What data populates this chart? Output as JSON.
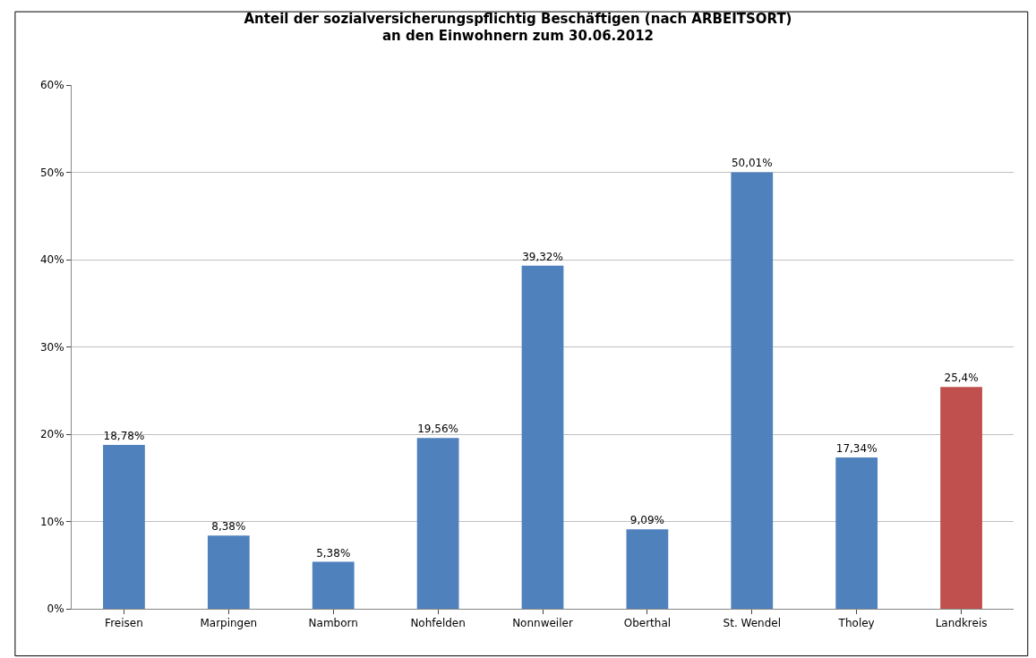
{
  "chart_data": {
    "type": "bar",
    "title": "Anteil der sozialversicherungspflichtig Beschäftigen (nach ARBEITSORT)\nan den Einwohnern zum 30.06.2012",
    "categories": [
      "Freisen",
      "Marpingen",
      "Namborn",
      "Nohfelden",
      "Nonnweiler",
      "Oberthal",
      "St. Wendel",
      "Tholey",
      "Landkreis"
    ],
    "values": [
      18.78,
      8.38,
      5.38,
      19.56,
      39.32,
      9.09,
      50.01,
      17.34,
      25.4
    ],
    "colors": [
      "#4f81bd",
      "#4f81bd",
      "#4f81bd",
      "#4f81bd",
      "#4f81bd",
      "#4f81bd",
      "#4f81bd",
      "#4f81bd",
      "#c0504d"
    ],
    "value_labels": [
      "18,78%",
      "8,38%",
      "5,38%",
      "19,56%",
      "39,32%",
      "9,09%",
      "50,01%",
      "17,34%",
      "25,4%"
    ],
    "ylim": [
      0,
      60
    ],
    "yticks": [
      {
        "value": 0,
        "label": "0%"
      },
      {
        "value": 10,
        "label": "10%"
      },
      {
        "value": 20,
        "label": "20%"
      },
      {
        "value": 30,
        "label": "30%"
      },
      {
        "value": 40,
        "label": "40%"
      },
      {
        "value": 50,
        "label": "50%"
      },
      {
        "value": 60,
        "label": "60%"
      }
    ],
    "grid": "y",
    "legend": false
  }
}
